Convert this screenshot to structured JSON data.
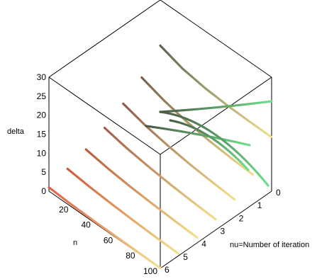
{
  "chart_data": {
    "type": "line",
    "projection": "3d-box",
    "z_axis": {
      "label": "delta",
      "ticks": [
        "0",
        "5",
        "10",
        "15",
        "20",
        "25",
        "30"
      ],
      "range": [
        0,
        30
      ]
    },
    "n_axis": {
      "label": "n",
      "ticks": [
        "20",
        "40",
        "60",
        "80",
        "100"
      ],
      "range": [
        0,
        100
      ]
    },
    "nu_axis": {
      "label": "nu=Number of iteration",
      "ticks": [
        "0",
        "1",
        "2",
        "3",
        "4",
        "5",
        "6"
      ],
      "range": [
        0,
        6
      ]
    },
    "series": [
      {
        "nu": 6,
        "n": [
          0,
          20,
          40,
          60,
          80,
          100
        ],
        "delta": [
          1.0,
          0.6,
          0.4,
          0.3,
          0.2,
          0.1
        ],
        "color": "#e0604a"
      },
      {
        "nu": 5,
        "n": [
          0,
          20,
          40,
          60,
          80,
          100
        ],
        "delta": [
          2.5,
          1.8,
          1.3,
          0.9,
          0.6,
          0.4
        ],
        "color": "#cc5a3c"
      },
      {
        "nu": 4,
        "n": [
          0,
          20,
          40,
          60,
          80,
          100
        ],
        "delta": [
          4.2,
          3.2,
          2.5,
          2.0,
          1.6,
          1.3
        ],
        "color": "#b85a3e"
      },
      {
        "nu": 3,
        "n": [
          0,
          20,
          40,
          60,
          80,
          100
        ],
        "delta": [
          6.5,
          5.2,
          4.3,
          3.6,
          3.1,
          2.7
        ],
        "color": "#a45a48"
      },
      {
        "nu": 2,
        "n": [
          0,
          20,
          40,
          60,
          80,
          100
        ],
        "delta": [
          9.5,
          7.8,
          6.6,
          5.7,
          5.1,
          4.6
        ],
        "color": "#8e5a4c"
      },
      {
        "nu": 1,
        "n": [
          0,
          20,
          40,
          60,
          80,
          100
        ],
        "delta": [
          13.0,
          11.0,
          9.6,
          8.7,
          8.1,
          7.7
        ],
        "color": "#78604e"
      },
      {
        "nu": 0,
        "n": [
          0,
          20,
          40,
          60,
          80,
          100
        ],
        "delta": [
          18.0,
          16.0,
          15.0,
          14.5,
          14.3,
          14.2
        ],
        "color": "#5a6450"
      }
    ],
    "end_colors": [
      "#f2e08a",
      "#6fe08a"
    ]
  }
}
